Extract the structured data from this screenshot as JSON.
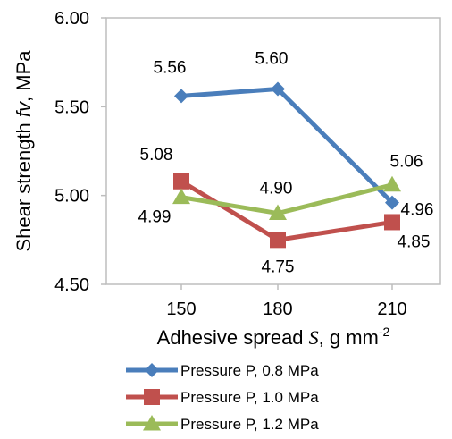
{
  "chart_data": {
    "type": "line",
    "categories": [
      "150",
      "180",
      "210"
    ],
    "ylim": [
      4.5,
      6.0
    ],
    "yticks": [
      "4.50",
      "5.00",
      "5.50",
      "6.00"
    ],
    "ylabel": {
      "pre": "Shear strength ",
      "sym": "fv",
      "post": ", MPa"
    },
    "xlabel": {
      "pre": "Adhesive spread ",
      "sym": "S",
      "post": ", g mm",
      "sup": "-2"
    },
    "grid": false,
    "legend_position": "bottom",
    "series": [
      {
        "name": "Pressure P, 0.8 MPa",
        "color": "#4a7ebb",
        "marker": "diamond",
        "values": [
          5.56,
          5.6,
          4.96
        ],
        "labels": [
          "5.56",
          "5.60",
          "4.96"
        ]
      },
      {
        "name": "Pressure P, 1.0 MPa",
        "color": "#c0504d",
        "marker": "square",
        "values": [
          5.08,
          4.75,
          4.85
        ],
        "labels": [
          "5.08",
          "4.75",
          "4.85"
        ]
      },
      {
        "name": "Pressure P, 1.2 MPa",
        "color": "#9bbb59",
        "marker": "triangle",
        "values": [
          4.99,
          4.9,
          5.06
        ],
        "labels": [
          "4.99",
          "4.90",
          "5.06"
        ]
      }
    ]
  }
}
